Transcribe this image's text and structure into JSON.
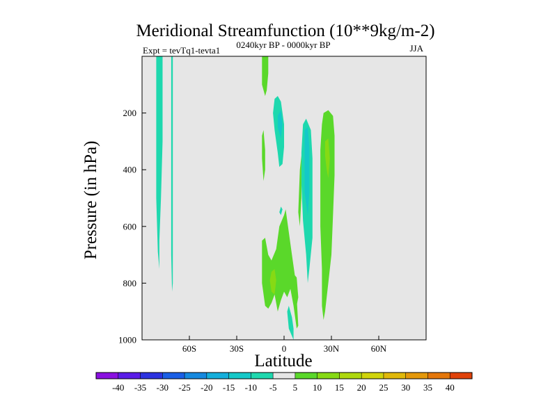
{
  "chart_data": {
    "type": "contour",
    "title": "Meridional Streamfunction (10**9kg/m-2)",
    "subtitle_left": "Expt = tevTq1-tevta1",
    "subtitle_center": "0240kyr BP - 0000kyr BP",
    "subtitle_right": "JJA",
    "xlabel": "Latitude",
    "ylabel": "Pressure (in hPa)",
    "xlim": [
      -90,
      90
    ],
    "ylim": [
      1000,
      0
    ],
    "x_ticks": [
      {
        "value": -60,
        "label": "60S"
      },
      {
        "value": -30,
        "label": "30S"
      },
      {
        "value": 0,
        "label": "0"
      },
      {
        "value": 30,
        "label": "30N"
      },
      {
        "value": 60,
        "label": "60N"
      }
    ],
    "y_ticks": [
      {
        "value": 200,
        "label": "200"
      },
      {
        "value": 400,
        "label": "400"
      },
      {
        "value": 600,
        "label": "600"
      },
      {
        "value": 800,
        "label": "800"
      },
      {
        "value": 1000,
        "label": "1000"
      }
    ],
    "background_color": "#e6e6e6",
    "colorbar": {
      "labels": [
        "-40",
        "-35",
        "-30",
        "-25",
        "-20",
        "-15",
        "-10",
        "-5",
        "5",
        "10",
        "15",
        "20",
        "25",
        "30",
        "35",
        "40"
      ],
      "colors": [
        "#8a10e0",
        "#5b1de8",
        "#2c32e0",
        "#1a5fe6",
        "#1689df",
        "#14aedb",
        "#14c8c8",
        "#1ed8ae",
        "#e6e6e6",
        "#5ad82a",
        "#86da14",
        "#aed80e",
        "#d0d40c",
        "#e0b80a",
        "#e4980a",
        "#e4760a",
        "#e0420a"
      ]
    },
    "regions": [
      {
        "value": -10,
        "color": "#1ed8ae",
        "points": [
          [
            -81,
            0
          ],
          [
            -77,
            0
          ],
          [
            -77,
            300
          ],
          [
            -78,
            500
          ],
          [
            -79,
            650
          ],
          [
            -79,
            750
          ],
          [
            -80,
            690
          ],
          [
            -81,
            500
          ],
          [
            -81,
            200
          ]
        ]
      },
      {
        "value": -10,
        "color": "#1ed8ae",
        "points": [
          [
            -71.5,
            0
          ],
          [
            -70.5,
            0
          ],
          [
            -70.5,
            400
          ],
          [
            -70.5,
            800
          ],
          [
            -71,
            830
          ],
          [
            -71.5,
            700
          ],
          [
            -71.5,
            300
          ]
        ]
      },
      {
        "value": -10,
        "color": "#1ed8ae",
        "points": [
          [
            -6,
            150
          ],
          [
            -4,
            140
          ],
          [
            -2,
            160
          ],
          [
            0,
            240
          ],
          [
            0,
            320
          ],
          [
            -1,
            380
          ],
          [
            -3,
            390
          ],
          [
            -4,
            340
          ],
          [
            -6,
            260
          ],
          [
            -7,
            200
          ]
        ]
      },
      {
        "value": -15,
        "color": "#14c8c8",
        "points": [
          [
            -4,
            210
          ],
          [
            -2,
            190
          ],
          [
            -1,
            240
          ],
          [
            -2,
            290
          ],
          [
            -4,
            250
          ]
        ]
      },
      {
        "value": -10,
        "color": "#1ed8ae",
        "points": [
          [
            -2,
            530
          ],
          [
            -1,
            540
          ],
          [
            -2,
            560
          ],
          [
            -3,
            550
          ]
        ]
      },
      {
        "value": -10,
        "color": "#1ed8ae",
        "points": [
          [
            12,
            240
          ],
          [
            14,
            220
          ],
          [
            17,
            260
          ],
          [
            18,
            360
          ],
          [
            18,
            500
          ],
          [
            18,
            640
          ],
          [
            16,
            750
          ],
          [
            15,
            800
          ],
          [
            14,
            700
          ],
          [
            12,
            580
          ],
          [
            11,
            450
          ],
          [
            11,
            340
          ]
        ]
      },
      {
        "value": -15,
        "color": "#14c8c8",
        "points": [
          [
            13,
            260
          ],
          [
            15,
            250
          ],
          [
            16,
            320
          ],
          [
            16,
            480
          ],
          [
            15,
            560
          ],
          [
            13,
            480
          ],
          [
            13,
            360
          ]
        ]
      },
      {
        "value": -10,
        "color": "#1ed8ae",
        "points": [
          [
            6,
            1000
          ],
          [
            3,
            960
          ],
          [
            2,
            900
          ],
          [
            3,
            880
          ],
          [
            5,
            920
          ],
          [
            6,
            960
          ]
        ]
      },
      {
        "value": 5,
        "color": "#5ad82a",
        "points": [
          [
            -14,
            0
          ],
          [
            -10,
            0
          ],
          [
            -10,
            60
          ],
          [
            -11,
            120
          ],
          [
            -12,
            140
          ],
          [
            -14,
            100
          ]
        ]
      },
      {
        "value": 5,
        "color": "#5ad82a",
        "points": [
          [
            -13,
            260
          ],
          [
            -12,
            330
          ],
          [
            -12,
            400
          ],
          [
            -13,
            440
          ],
          [
            -14,
            360
          ],
          [
            -14,
            280
          ]
        ]
      },
      {
        "value": 5,
        "color": "#5ad82a",
        "points": [
          [
            10,
            400
          ],
          [
            11,
            350
          ],
          [
            11,
            500
          ],
          [
            10,
            600
          ],
          [
            9,
            550
          ]
        ]
      },
      {
        "value": 5,
        "color": "#5ad82a",
        "points": [
          [
            -14,
            650
          ],
          [
            -12,
            640
          ],
          [
            -10,
            700
          ],
          [
            -8,
            720
          ],
          [
            -5,
            680
          ],
          [
            -3,
            600
          ],
          [
            0,
            560
          ],
          [
            1,
            540
          ],
          [
            3,
            620
          ],
          [
            5,
            700
          ],
          [
            7,
            780
          ],
          [
            8,
            850
          ],
          [
            9,
            950
          ],
          [
            8,
            960
          ],
          [
            6,
            880
          ],
          [
            4,
            820
          ],
          [
            2,
            850
          ],
          [
            0,
            830
          ],
          [
            -2,
            860
          ],
          [
            -4,
            900
          ],
          [
            -6,
            840
          ],
          [
            -8,
            870
          ],
          [
            -10,
            890
          ],
          [
            -12,
            880
          ],
          [
            -14,
            800
          ]
        ]
      },
      {
        "value": 10,
        "color": "#86da14",
        "points": [
          [
            -8,
            760
          ],
          [
            -6,
            750
          ],
          [
            -5,
            790
          ],
          [
            -6,
            840
          ],
          [
            -8,
            830
          ],
          [
            -9,
            790
          ]
        ]
      },
      {
        "value": 5,
        "color": "#5ad82a",
        "points": [
          [
            5,
            760
          ],
          [
            8,
            780
          ],
          [
            9,
            850
          ],
          [
            8,
            880
          ],
          [
            6,
            830
          ]
        ]
      },
      {
        "value": 5,
        "color": "#5ad82a",
        "points": [
          [
            25,
            200
          ],
          [
            28,
            190
          ],
          [
            31,
            210
          ],
          [
            32,
            280
          ],
          [
            32,
            420
          ],
          [
            31,
            560
          ],
          [
            30,
            700
          ],
          [
            28,
            800
          ],
          [
            26,
            900
          ],
          [
            25,
            930
          ],
          [
            24,
            880
          ],
          [
            24,
            750
          ],
          [
            23,
            600
          ],
          [
            23,
            450
          ],
          [
            23,
            330
          ],
          [
            24,
            240
          ]
        ]
      },
      {
        "value": 10,
        "color": "#86da14",
        "points": [
          [
            26,
            300
          ],
          [
            28,
            290
          ],
          [
            29,
            360
          ],
          [
            28,
            430
          ],
          [
            27,
            400
          ],
          [
            26,
            350
          ]
        ]
      }
    ]
  }
}
